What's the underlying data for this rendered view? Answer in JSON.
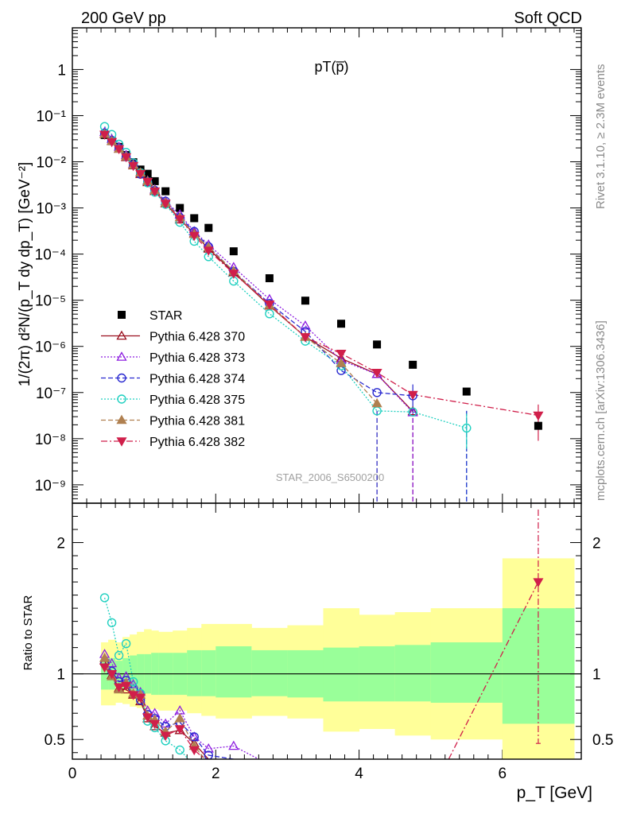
{
  "header": {
    "left": "200 GeV pp",
    "right": "Soft QCD"
  },
  "side_texts": {
    "rivet": "Rivet 3.1.10, ≥ 2.3M events",
    "mcplots": "mcplots.cern.ch [arXiv:1306.3436]"
  },
  "chart_data": [
    {
      "type": "scatter",
      "panel": "main",
      "title": "pT(p̅)",
      "watermark": "STAR_2006_S6500200",
      "ylabel": "1/(2π) d²N/(p_T dy dp_T) [GeV⁻²]",
      "xlim": [
        0,
        7.1
      ],
      "ylim": [
        4e-10,
        8
      ],
      "yscale": "log",
      "x_ticks": [
        "0",
        "2",
        "4",
        "6"
      ],
      "y_ticks": [
        "10⁻⁹",
        "10⁻⁸",
        "10⁻⁷",
        "10⁻⁶",
        "10⁻⁵",
        "10⁻⁴",
        "10⁻³",
        "10⁻²",
        "10⁻¹",
        "1"
      ],
      "legend_position": "left-middle",
      "series": [
        {
          "name": "STAR",
          "color": "#000000",
          "marker": "square-filled",
          "line": "none",
          "x": [
            0.45,
            0.55,
            0.65,
            0.75,
            0.85,
            0.95,
            1.05,
            1.15,
            1.3,
            1.5,
            1.7,
            1.9,
            2.25,
            2.75,
            3.25,
            3.75,
            4.25,
            4.75,
            5.5,
            6.5
          ],
          "y": [
            0.038,
            0.028,
            0.021,
            0.014,
            0.0098,
            0.0068,
            0.0055,
            0.0038,
            0.0023,
            0.001,
            0.0006,
            0.00037,
            0.000115,
            3e-05,
            9.8e-06,
            3.1e-06,
            1.1e-06,
            4e-07,
            1.05e-07,
            1.9e-08
          ]
        },
        {
          "name": "Pythia 6.428 370",
          "color": "#9a0f1e",
          "marker": "triangle-up-open",
          "line": "solid",
          "x": [
            0.45,
            0.55,
            0.65,
            0.75,
            0.85,
            0.95,
            1.05,
            1.15,
            1.3,
            1.5,
            1.7,
            1.9,
            2.25,
            2.75,
            3.25,
            3.75,
            4.25,
            4.75
          ],
          "y": [
            0.04,
            0.028,
            0.019,
            0.0125,
            0.0083,
            0.0054,
            0.0036,
            0.0023,
            0.00125,
            0.00056,
            0.00028,
            0.00013,
            4e-05,
            7.6e-06,
            1.6e-06,
            5.5e-07,
            2.5e-07,
            3.9e-08
          ]
        },
        {
          "name": "Pythia 6.428 373",
          "color": "#8d1de0",
          "marker": "triangle-up-open",
          "line": "dotted",
          "x": [
            0.45,
            0.55,
            0.65,
            0.75,
            0.85,
            0.95,
            1.05,
            1.15,
            1.3,
            1.5,
            1.7,
            1.9,
            2.25,
            2.75,
            3.25,
            3.75,
            4.25,
            4.75
          ],
          "y": [
            0.044,
            0.031,
            0.021,
            0.014,
            0.009,
            0.0058,
            0.0039,
            0.0025,
            0.0014,
            0.00072,
            0.00031,
            0.00016,
            5.2e-05,
            1.05e-05,
            2.8e-06,
            5e-07,
            2.5e-07,
            3.7e-08
          ]
        },
        {
          "name": "Pythia 6.428 374",
          "color": "#2a2ad0",
          "marker": "circle-open",
          "line": "dashed",
          "x": [
            0.45,
            0.55,
            0.65,
            0.75,
            0.85,
            0.95,
            1.05,
            1.15,
            1.3,
            1.5,
            1.7,
            1.9,
            2.25,
            2.75,
            3.25,
            3.75,
            4.25,
            4.75
          ],
          "y": [
            0.042,
            0.029,
            0.02,
            0.013,
            0.0086,
            0.0054,
            0.0037,
            0.0024,
            0.0014,
            0.00062,
            0.00031,
            0.000145,
            4.2e-05,
            8.5e-06,
            2.1e-06,
            3e-07,
            1e-07,
            8.5e-08
          ]
        },
        {
          "name": "Pythia 6.428 375",
          "color": "#20d0c0",
          "marker": "circle-open",
          "line": "dotted",
          "x": [
            0.45,
            0.55,
            0.65,
            0.75,
            0.85,
            0.95,
            1.05,
            1.15,
            1.3,
            1.5,
            1.7,
            1.9,
            2.25,
            2.75,
            3.25,
            3.75,
            4.25,
            4.75,
            5.5
          ],
          "y": [
            0.058,
            0.039,
            0.024,
            0.016,
            0.0095,
            0.0058,
            0.0035,
            0.0022,
            0.0012,
            0.00049,
            0.00019,
            8.8e-05,
            2.6e-05,
            5.1e-06,
            1.3e-06,
            3.8e-07,
            4e-08,
            3.8e-08,
            1.7e-08
          ]
        },
        {
          "name": "Pythia 6.428 381",
          "color": "#b08050",
          "marker": "triangle-up-filled",
          "line": "dashed",
          "x": [
            0.45,
            0.55,
            0.65,
            0.75,
            0.85,
            0.95,
            1.05,
            1.15,
            1.3,
            1.5,
            1.7,
            1.9,
            2.25,
            2.75,
            3.25,
            3.75,
            4.25
          ],
          "y": [
            0.04,
            0.028,
            0.019,
            0.013,
            0.0085,
            0.0058,
            0.0038,
            0.0024,
            0.0013,
            0.00062,
            0.00027,
            0.00014,
            4.3e-05,
            7.8e-06,
            1.6e-06,
            4.3e-07,
            5.8e-08
          ]
        },
        {
          "name": "Pythia 6.428 382",
          "color": "#d01f4a",
          "marker": "triangle-down-filled",
          "line": "dashdot",
          "x": [
            0.45,
            0.55,
            0.65,
            0.75,
            0.85,
            0.95,
            1.05,
            1.15,
            1.3,
            1.5,
            1.7,
            1.9,
            2.25,
            2.75,
            3.25,
            3.75,
            4.25,
            4.75,
            6.5
          ],
          "y": [
            0.039,
            0.027,
            0.019,
            0.0127,
            0.0082,
            0.0055,
            0.0037,
            0.0023,
            0.00125,
            0.00058,
            0.00025,
            0.00012,
            3.8e-05,
            8.2e-06,
            1.6e-06,
            7e-07,
            2.7e-07,
            9e-08,
            3.2e-08
          ]
        }
      ]
    },
    {
      "type": "line",
      "panel": "ratio",
      "ylabel": "Ratio to STAR",
      "xlabel": "p_T [GeV]",
      "xlim": [
        0,
        7.1
      ],
      "ylim": [
        0.35,
        2.3
      ],
      "x_ticks": [
        "0",
        "2",
        "4",
        "6"
      ],
      "y_ticks": [
        "0.5",
        "1",
        "2"
      ],
      "reference_line": 1,
      "uncertainty_bands": {
        "x_edges": [
          0.4,
          0.5,
          0.6,
          0.7,
          0.8,
          0.9,
          1.0,
          1.1,
          1.2,
          1.4,
          1.6,
          1.8,
          2.0,
          2.5,
          3.0,
          3.5,
          4.0,
          4.5,
          5.0,
          6.0,
          7.0
        ],
        "green": [
          [
            0.88,
            1.12
          ],
          [
            0.88,
            1.12
          ],
          [
            0.9,
            1.1
          ],
          [
            0.88,
            1.12
          ],
          [
            0.86,
            1.14
          ],
          [
            0.85,
            1.15
          ],
          [
            0.85,
            1.15
          ],
          [
            0.84,
            1.16
          ],
          [
            0.84,
            1.16
          ],
          [
            0.84,
            1.16
          ],
          [
            0.83,
            1.18
          ],
          [
            0.83,
            1.18
          ],
          [
            0.82,
            1.21
          ],
          [
            0.83,
            1.18
          ],
          [
            0.82,
            1.18
          ],
          [
            0.79,
            1.2
          ],
          [
            0.79,
            1.21
          ],
          [
            0.79,
            1.22
          ],
          [
            0.78,
            1.24
          ],
          [
            0.62,
            1.5
          ]
        ],
        "yellow": [
          [
            0.76,
            1.24
          ],
          [
            0.76,
            1.26
          ],
          [
            0.78,
            1.24
          ],
          [
            0.77,
            1.28
          ],
          [
            0.75,
            1.3
          ],
          [
            0.74,
            1.32
          ],
          [
            0.73,
            1.34
          ],
          [
            0.73,
            1.33
          ],
          [
            0.72,
            1.32
          ],
          [
            0.72,
            1.33
          ],
          [
            0.7,
            1.35
          ],
          [
            0.68,
            1.38
          ],
          [
            0.66,
            1.38
          ],
          [
            0.68,
            1.35
          ],
          [
            0.66,
            1.37
          ],
          [
            0.56,
            1.5
          ],
          [
            0.58,
            1.45
          ],
          [
            0.53,
            1.47
          ],
          [
            0.5,
            1.5
          ],
          [
            0.35,
            1.88
          ]
        ]
      },
      "series": [
        {
          "name": "Pythia 6.428 370",
          "x": [
            0.45,
            0.55,
            0.65,
            0.75,
            0.85,
            0.95,
            1.05,
            1.15,
            1.3,
            1.5,
            1.7,
            1.9
          ],
          "y": [
            1.1,
            0.99,
            0.89,
            0.88,
            0.84,
            0.79,
            0.66,
            0.6,
            0.55,
            0.57,
            0.47,
            0.35
          ]
        },
        {
          "name": "Pythia 6.428 373",
          "x": [
            0.45,
            0.55,
            0.65,
            0.75,
            0.85,
            0.95,
            1.05,
            1.15,
            1.3,
            1.5,
            1.7,
            1.9,
            2.25,
            2.6
          ],
          "y": [
            1.15,
            1.08,
            0.97,
            0.98,
            0.92,
            0.86,
            0.72,
            0.7,
            0.62,
            0.72,
            0.52,
            0.43,
            0.45,
            0.35
          ]
        },
        {
          "name": "Pythia 6.428 374",
          "x": [
            0.45,
            0.55,
            0.65,
            0.75,
            0.85,
            0.95,
            1.05,
            1.15,
            1.3,
            1.5,
            1.7,
            1.9,
            2.25
          ],
          "y": [
            1.08,
            1.02,
            0.94,
            0.95,
            0.88,
            0.8,
            0.69,
            0.66,
            0.6,
            0.63,
            0.52,
            0.38,
            0.35
          ]
        },
        {
          "name": "Pythia 6.428 375",
          "x": [
            0.45,
            0.55,
            0.65,
            0.75,
            0.85,
            0.95,
            1.05,
            1.15,
            1.3,
            1.5,
            1.62
          ],
          "y": [
            1.58,
            1.39,
            1.14,
            1.23,
            0.94,
            0.85,
            0.64,
            0.59,
            0.49,
            0.42,
            0.35
          ]
        },
        {
          "name": "Pythia 6.428 381",
          "x": [
            0.45,
            0.55,
            0.65,
            0.75,
            0.85,
            0.95,
            1.05,
            1.15,
            1.3,
            1.5,
            1.7,
            1.85
          ],
          "y": [
            1.12,
            0.98,
            0.88,
            0.93,
            0.85,
            0.84,
            0.68,
            0.65,
            0.56,
            0.66,
            0.45,
            0.35
          ]
        },
        {
          "name": "Pythia 6.428 382",
          "x": [
            0.45,
            0.55,
            0.65,
            0.75,
            0.85,
            0.95,
            1.05,
            1.15,
            1.3,
            1.5,
            1.7,
            1.85
          ],
          "y": [
            1.05,
            1.0,
            0.9,
            0.91,
            0.84,
            0.82,
            0.67,
            0.62,
            0.53,
            0.58,
            0.42,
            0.35
          ]
        },
        {
          "name": "Pythia 6.428 382",
          "x": [
            5.25,
            6.5
          ],
          "y": [
            0.35,
            1.7
          ]
        }
      ]
    }
  ]
}
